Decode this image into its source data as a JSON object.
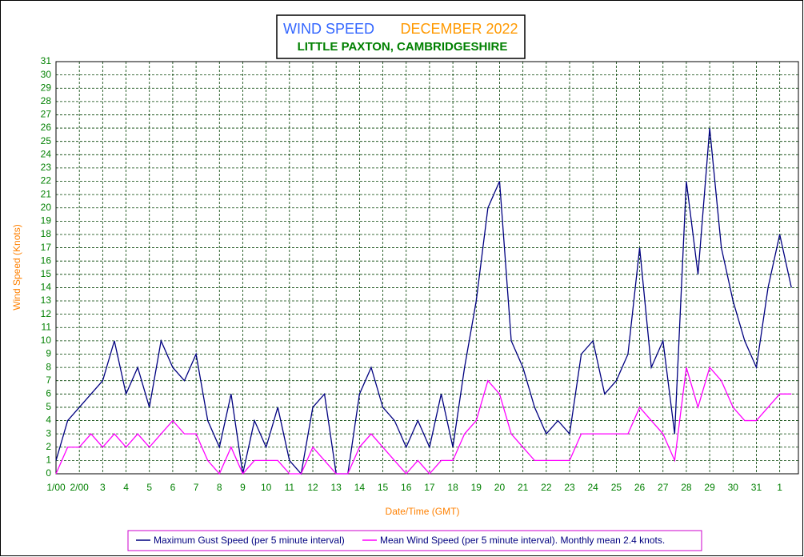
{
  "chart_data": {
    "type": "line",
    "title": "WIND SPEED",
    "title_date": "DECEMBER 2022",
    "subtitle": "LITTLE PAXTON, CAMBRIDGESHIRE",
    "x_label": "Date/Time (GMT)",
    "y_label": "Wind Speed (Knots)",
    "x": [
      1,
      1.5,
      2,
      2.5,
      3,
      3.5,
      4,
      4.5,
      5,
      5.5,
      6,
      6.5,
      7,
      7.5,
      8,
      8.5,
      9,
      9.5,
      10,
      10.5,
      11,
      11.5,
      12,
      12.5,
      13,
      13.5,
      14,
      14.5,
      15,
      15.5,
      16,
      16.5,
      17,
      17.5,
      18,
      18.5,
      19,
      19.5,
      20,
      20.5,
      21,
      21.5,
      22,
      22.5,
      23,
      23.5,
      24,
      24.5,
      25,
      25.5,
      26,
      26.5,
      27,
      27.5,
      28,
      28.5,
      29,
      29.5,
      30,
      30.5,
      31,
      31.5,
      32,
      32.5
    ],
    "series": [
      {
        "name": "Maximum Gust Speed (per 5 minute interval)",
        "color": "#000080",
        "values": [
          1,
          4,
          5,
          6,
          7,
          10,
          6,
          8,
          5,
          10,
          8,
          7,
          9,
          4,
          2,
          6,
          0,
          4,
          2,
          5,
          1,
          0,
          5,
          6,
          0,
          0,
          6,
          8,
          5,
          4,
          2,
          4,
          2,
          6,
          2,
          8,
          13,
          20,
          22,
          10,
          8,
          5,
          3,
          4,
          3,
          9,
          10,
          6,
          7,
          9,
          17,
          8,
          10,
          3,
          22,
          15,
          26,
          17,
          13,
          10,
          8,
          14,
          18,
          14
        ]
      },
      {
        "name": "Mean Wind Speed (per 5 minute interval). Monthly mean 2.4 knots.",
        "color": "#ff00ff",
        "values": [
          0,
          2,
          2,
          3,
          2,
          3,
          2,
          3,
          2,
          3,
          4,
          3,
          3,
          1,
          0,
          2,
          0,
          1,
          1,
          1,
          0,
          0,
          2,
          1,
          0,
          0,
          2,
          3,
          2,
          1,
          0,
          1,
          0,
          1,
          1,
          3,
          4,
          7,
          6,
          3,
          2,
          1,
          1,
          1,
          1,
          3,
          3,
          3,
          3,
          3,
          5,
          4,
          3,
          1,
          8,
          5,
          8,
          7,
          5,
          4,
          4,
          5,
          6,
          6
        ]
      }
    ],
    "xlim": [
      1,
      32.8
    ],
    "xticks": [
      {
        "value": 1,
        "label": "1/00"
      },
      {
        "value": 2,
        "label": "2/00"
      },
      3,
      4,
      5,
      6,
      7,
      8,
      9,
      10,
      11,
      12,
      13,
      14,
      15,
      16,
      17,
      18,
      19,
      20,
      21,
      22,
      23,
      24,
      25,
      26,
      27,
      28,
      29,
      30,
      31,
      {
        "value": 32,
        "label": "1"
      }
    ],
    "ylim": [
      0,
      31
    ],
    "yticks": [
      0,
      1,
      2,
      3,
      4,
      5,
      6,
      7,
      8,
      9,
      10,
      11,
      12,
      13,
      14,
      15,
      16,
      17,
      18,
      19,
      20,
      21,
      22,
      23,
      24,
      25,
      26,
      27,
      28,
      29,
      30,
      31
    ],
    "grid": true,
    "legend": "bottom"
  }
}
